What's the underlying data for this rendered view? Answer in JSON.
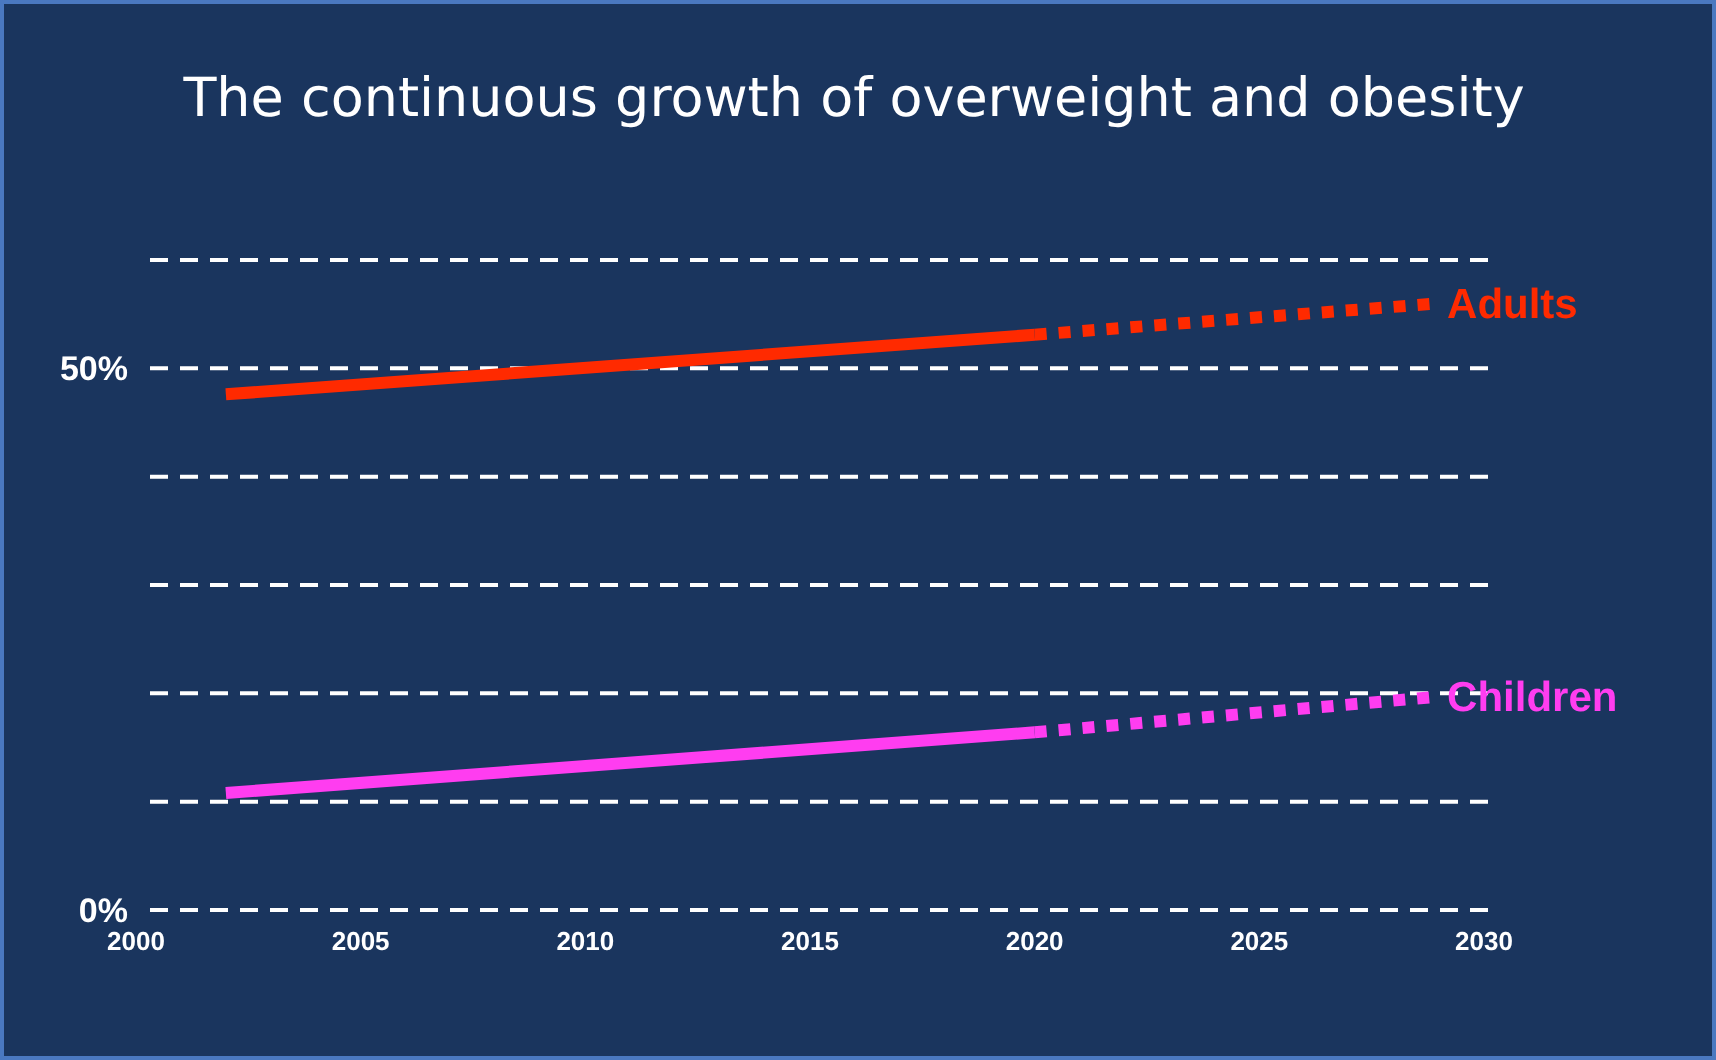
{
  "chart_data": {
    "type": "line",
    "title": "The continuous growth of overweight and obesity",
    "series": [
      {
        "color": "#ff2a00",
        "x": [
          2002,
          2020
        ],
        "values": [
          47.6,
          53.1
        ],
        "line_style": "solid"
      },
      {
        "name": "Adults",
        "color": "#ff2a00",
        "x": [
          2020,
          2029
        ],
        "values": [
          53.1,
          56
        ],
        "line_style": "dotted"
      },
      {
        "color": "#ff3df0",
        "x": [
          2002,
          2020
        ],
        "values": [
          10.8,
          16.4
        ],
        "line_style": "solid"
      },
      {
        "name": "Children",
        "color": "#ff3df0",
        "x": [
          2020,
          2029
        ],
        "values": [
          16.4,
          19.7
        ],
        "line_style": "dotted"
      }
    ],
    "xlim": [
      2000,
      2030
    ],
    "xticks": [
      2000,
      2005,
      2010,
      2015,
      2020,
      2025,
      2030
    ],
    "ylim": [
      0,
      60
    ],
    "yticks": [
      {
        "value": 0,
        "label": "0%"
      },
      {
        "value": 10,
        "label": null
      },
      {
        "value": 20,
        "label": null
      },
      {
        "value": 30,
        "label": null
      },
      {
        "value": 40,
        "label": null
      },
      {
        "value": 50,
        "label": "50%"
      },
      {
        "value": 60,
        "label": null
      }
    ],
    "grid": "y",
    "marker": "none"
  }
}
